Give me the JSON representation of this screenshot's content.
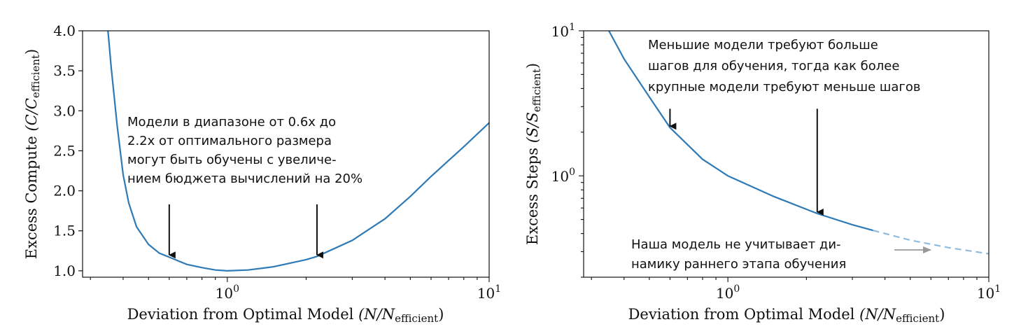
{
  "chart_data": [
    {
      "type": "line",
      "xscale": "log",
      "xlim": [
        0.28,
        10
      ],
      "ylim": [
        0.92,
        4.0
      ],
      "xlabel": "Deviation from Optimal Model",
      "xlabel_math": "(N/N",
      "xlabel_sub": "efficient",
      "xlabel_close": ")",
      "ylabel": "Excess Compute",
      "ylabel_math": "(C/C",
      "ylabel_sub": "efficient",
      "ylabel_close": ")",
      "xticks": [
        {
          "base": "10",
          "exp": "0",
          "value": 1
        },
        {
          "base": "10",
          "exp": "1",
          "value": 10
        }
      ],
      "yticks": [
        "1.0",
        "1.5",
        "2.0",
        "2.5",
        "3.0",
        "3.5",
        "4.0"
      ],
      "series": {
        "name": "Excess compute",
        "color": "#2e7ab6",
        "x": [
          0.35,
          0.36,
          0.38,
          0.4,
          0.42,
          0.45,
          0.5,
          0.55,
          0.6,
          0.7,
          0.8,
          0.9,
          1.0,
          1.2,
          1.5,
          2.0,
          2.2,
          3.0,
          4.0,
          5.0,
          6.0,
          8.0,
          10.0
        ],
        "y": [
          4.0,
          3.55,
          2.8,
          2.2,
          1.85,
          1.55,
          1.33,
          1.22,
          1.17,
          1.08,
          1.04,
          1.01,
          1.0,
          1.01,
          1.05,
          1.14,
          1.18,
          1.38,
          1.65,
          1.93,
          2.18,
          2.55,
          2.85
        ]
      },
      "arrows": [
        {
          "x": 0.6,
          "y_tip": 1.18
        },
        {
          "x": 2.2,
          "y_tip": 1.18
        }
      ],
      "annotation": [
        "Модели в диапазоне от 0.6x до",
        "2.2x от оптимального размера",
        "могут быть обучены с увеличе-",
        "нием бюджета вычислений на 20%"
      ]
    },
    {
      "type": "line",
      "xscale": "log",
      "yscale": "log",
      "xlim": [
        0.28,
        10
      ],
      "ylim": [
        0.2,
        10
      ],
      "xlabel": "Deviation from Optimal Model",
      "xlabel_math": "(N/N",
      "xlabel_sub": "efficient",
      "xlabel_close": ")",
      "ylabel": "Excess Steps",
      "ylabel_math": "(S/S",
      "ylabel_sub": "efficient",
      "ylabel_close": ")",
      "xticks": [
        {
          "base": "10",
          "exp": "0",
          "value": 1
        },
        {
          "base": "10",
          "exp": "1",
          "value": 10
        }
      ],
      "yticks": [
        {
          "base": "10",
          "exp": "0",
          "value": 1
        },
        {
          "base": "10",
          "exp": "1",
          "value": 10
        }
      ],
      "series": {
        "name": "Excess steps",
        "color": "#2e7ab6",
        "x": [
          0.35,
          0.4,
          0.5,
          0.6,
          0.8,
          1.0,
          1.5,
          2.2,
          3.0,
          3.6
        ],
        "y": [
          10.0,
          6.4,
          3.5,
          2.15,
          1.3,
          1.0,
          0.72,
          0.55,
          0.46,
          0.42
        ]
      },
      "dashed_series": {
        "name": "Early training regime (not modeled)",
        "color": "#8fbbdf",
        "x": [
          3.6,
          5.0,
          7.0,
          10.0
        ],
        "y": [
          0.42,
          0.36,
          0.32,
          0.29
        ]
      },
      "arrows": [
        {
          "x": 0.6,
          "y_top": 2.9,
          "y_tip": 2.15
        },
        {
          "x": 2.2,
          "y_top": 2.9,
          "y_tip": 0.55
        }
      ],
      "top_annotation": [
        "Меньшие модели требуют больше",
        "шагов для обучения, тогда как более",
        "крупные модели требуют меньше шагов"
      ],
      "bottom_annotation": [
        "Наша модель не учитывает ди-",
        "намику раннего этапа обучения"
      ]
    }
  ]
}
